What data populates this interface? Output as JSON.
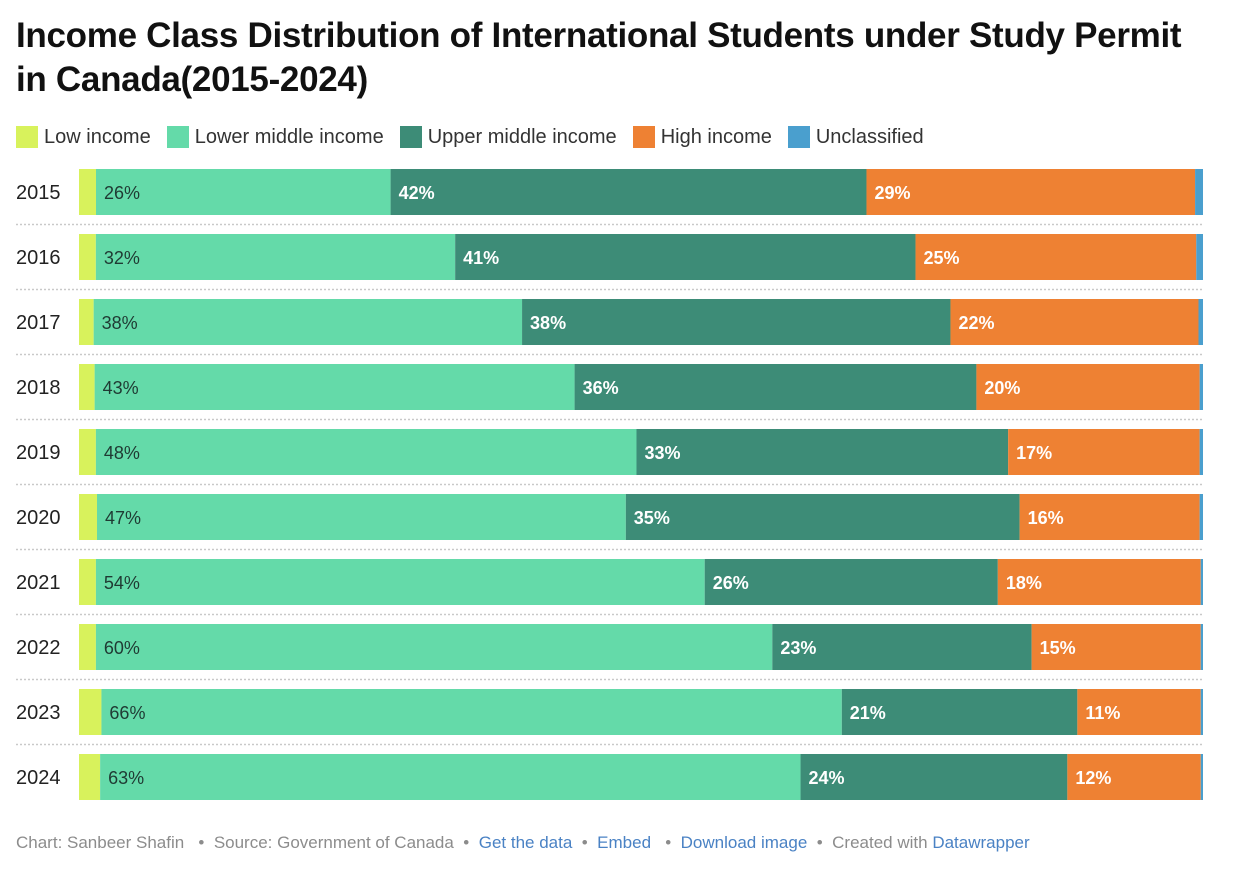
{
  "title": "Income Class Distribution of International Students under Study Permit in Canada(2015-2024)",
  "legend": [
    {
      "label": "Low income",
      "color": "#d8f25c"
    },
    {
      "label": "Lower middle income",
      "color": "#64daa9"
    },
    {
      "label": "Upper middle income",
      "color": "#3d8c77"
    },
    {
      "label": "High income",
      "color": "#ee8133"
    },
    {
      "label": "Unclassified",
      "color": "#4a9fce"
    }
  ],
  "footer": {
    "chart_credit": "Chart: Sanbeer Shafin",
    "source": "Source: Government of Canada",
    "get_data": "Get the data",
    "embed": "Embed",
    "download": "Download image",
    "created_with": "Created with",
    "datawrapper": "Datawrapper"
  },
  "chart_data": {
    "type": "bar",
    "orientation": "horizontal",
    "stacked": "100%",
    "categories": [
      "2015",
      "2016",
      "2017",
      "2018",
      "2019",
      "2020",
      "2021",
      "2022",
      "2023",
      "2024"
    ],
    "series": [
      {
        "name": "Low income",
        "color": "#d8f25c",
        "values": [
          1.5,
          1.5,
          1.3,
          1.4,
          1.5,
          1.6,
          1.5,
          1.5,
          2.0,
          1.9
        ]
      },
      {
        "name": "Lower middle income",
        "color": "#64daa9",
        "values": [
          26,
          32,
          38,
          43,
          48,
          47,
          54,
          60,
          66,
          63
        ],
        "labels": [
          "26%",
          "32%",
          "38%",
          "43%",
          "48%",
          "47%",
          "54%",
          "60%",
          "66%",
          "63%"
        ]
      },
      {
        "name": "Upper middle income",
        "color": "#3d8c77",
        "values": [
          42,
          41,
          38,
          36,
          33,
          35,
          26,
          23,
          21,
          24
        ],
        "labels": [
          "42%",
          "41%",
          "38%",
          "36%",
          "33%",
          "35%",
          "26%",
          "23%",
          "21%",
          "24%"
        ]
      },
      {
        "name": "High income",
        "color": "#ee8133",
        "values": [
          29,
          25,
          22,
          20,
          17,
          16,
          18,
          15,
          11,
          12
        ],
        "labels": [
          "29%",
          "25%",
          "22%",
          "20%",
          "17%",
          "16%",
          "18%",
          "15%",
          "11%",
          "12%"
        ]
      },
      {
        "name": "Unclassified",
        "color": "#4a9fce",
        "values": [
          0.7,
          0.6,
          0.4,
          0.3,
          0.3,
          0.3,
          0.2,
          0.2,
          0.2,
          0.2
        ]
      }
    ],
    "xlim": [
      0,
      100
    ],
    "legend_position": "top-left",
    "grid": false
  }
}
